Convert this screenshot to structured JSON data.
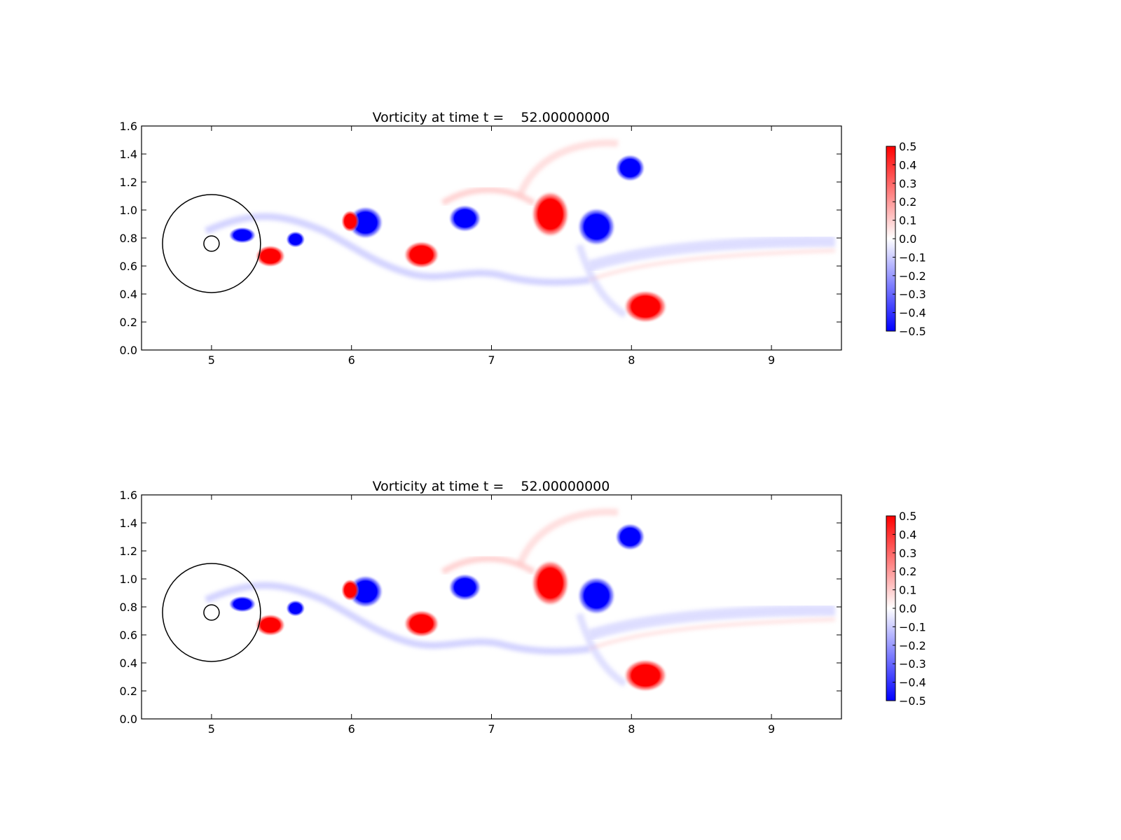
{
  "chart_data": [
    {
      "type": "heatmap",
      "title": "Vorticity at time t =    52.00000000",
      "xlabel": "",
      "ylabel": "",
      "xlim": [
        4.5,
        9.5
      ],
      "ylim": [
        0.0,
        1.6
      ],
      "xticks": [
        5,
        6,
        7,
        8,
        9
      ],
      "xtick_labels": [
        "5",
        "6",
        "7",
        "8",
        "9"
      ],
      "yticks": [
        0.0,
        0.2,
        0.4,
        0.6,
        0.8,
        1.0,
        1.2,
        1.4,
        1.6
      ],
      "ytick_labels": [
        "0.0",
        "0.2",
        "0.4",
        "0.6",
        "0.8",
        "1.0",
        "1.2",
        "1.4",
        "1.6"
      ],
      "grid": false,
      "colormap": "bwr",
      "colorbar": {
        "range": [
          -0.5,
          0.5
        ],
        "ticks": [
          0.5,
          0.4,
          0.3,
          0.2,
          0.1,
          0.0,
          -0.1,
          -0.2,
          -0.3,
          -0.4,
          -0.5
        ],
        "tick_labels": [
          "0.5",
          "0.4",
          "0.3",
          "0.2",
          "0.1",
          "0.0",
          "−0.1",
          "−0.2",
          "−0.3",
          "−0.4",
          "−0.5"
        ],
        "placement": "right"
      },
      "circles": [
        {
          "cx": 5.0,
          "cy": 0.76,
          "r": 0.35
        },
        {
          "cx": 5.0,
          "cy": 0.76,
          "r": 0.055
        }
      ],
      "vortices": [
        {
          "x": 5.22,
          "y": 0.82,
          "rx": 0.1,
          "ry": 0.06,
          "value": -0.5
        },
        {
          "x": 5.6,
          "y": 0.79,
          "rx": 0.07,
          "ry": 0.06,
          "value": -0.5
        },
        {
          "x": 5.42,
          "y": 0.67,
          "rx": 0.11,
          "ry": 0.08,
          "value": 0.5
        },
        {
          "x": 6.1,
          "y": 0.91,
          "rx": 0.13,
          "ry": 0.12,
          "value": -0.5
        },
        {
          "x": 5.99,
          "y": 0.92,
          "rx": 0.065,
          "ry": 0.08,
          "value": 0.5
        },
        {
          "x": 6.5,
          "y": 0.68,
          "rx": 0.13,
          "ry": 0.1,
          "value": 0.5
        },
        {
          "x": 6.81,
          "y": 0.94,
          "rx": 0.12,
          "ry": 0.1,
          "value": -0.5
        },
        {
          "x": 7.42,
          "y": 0.97,
          "rx": 0.14,
          "ry": 0.17,
          "value": 0.5
        },
        {
          "x": 7.75,
          "y": 0.88,
          "rx": 0.14,
          "ry": 0.14,
          "value": -0.5
        },
        {
          "x": 7.99,
          "y": 1.3,
          "rx": 0.11,
          "ry": 0.1,
          "value": -0.5
        },
        {
          "x": 8.1,
          "y": 0.31,
          "rx": 0.16,
          "ry": 0.12,
          "value": 0.5
        }
      ]
    },
    {
      "type": "heatmap",
      "title": "Vorticity at time t =    52.00000000",
      "xlabel": "",
      "ylabel": "",
      "xlim": [
        4.5,
        9.5
      ],
      "ylim": [
        0.0,
        1.6
      ],
      "xticks": [
        5,
        6,
        7,
        8,
        9
      ],
      "xtick_labels": [
        "5",
        "6",
        "7",
        "8",
        "9"
      ],
      "yticks": [
        0.0,
        0.2,
        0.4,
        0.6,
        0.8,
        1.0,
        1.2,
        1.4,
        1.6
      ],
      "ytick_labels": [
        "0.0",
        "0.2",
        "0.4",
        "0.6",
        "0.8",
        "1.0",
        "1.2",
        "1.4",
        "1.6"
      ],
      "grid": false,
      "colormap": "bwr",
      "colorbar": {
        "range": [
          -0.5,
          0.5
        ],
        "ticks": [
          0.5,
          0.4,
          0.3,
          0.2,
          0.1,
          0.0,
          -0.1,
          -0.2,
          -0.3,
          -0.4,
          -0.5
        ],
        "tick_labels": [
          "0.5",
          "0.4",
          "0.3",
          "0.2",
          "0.1",
          "0.0",
          "−0.1",
          "−0.2",
          "−0.3",
          "−0.4",
          "−0.5"
        ],
        "placement": "right"
      },
      "circles": [
        {
          "cx": 5.0,
          "cy": 0.76,
          "r": 0.35
        },
        {
          "cx": 5.0,
          "cy": 0.76,
          "r": 0.055
        }
      ],
      "vortices": [
        {
          "x": 5.22,
          "y": 0.82,
          "rx": 0.1,
          "ry": 0.06,
          "value": -0.5
        },
        {
          "x": 5.6,
          "y": 0.79,
          "rx": 0.07,
          "ry": 0.06,
          "value": -0.5
        },
        {
          "x": 5.42,
          "y": 0.67,
          "rx": 0.11,
          "ry": 0.08,
          "value": 0.5
        },
        {
          "x": 6.1,
          "y": 0.91,
          "rx": 0.13,
          "ry": 0.12,
          "value": -0.5
        },
        {
          "x": 5.99,
          "y": 0.92,
          "rx": 0.065,
          "ry": 0.08,
          "value": 0.5
        },
        {
          "x": 6.5,
          "y": 0.68,
          "rx": 0.13,
          "ry": 0.1,
          "value": 0.5
        },
        {
          "x": 6.81,
          "y": 0.94,
          "rx": 0.12,
          "ry": 0.1,
          "value": -0.5
        },
        {
          "x": 7.42,
          "y": 0.97,
          "rx": 0.14,
          "ry": 0.17,
          "value": 0.5
        },
        {
          "x": 7.75,
          "y": 0.88,
          "rx": 0.14,
          "ry": 0.14,
          "value": -0.5
        },
        {
          "x": 7.99,
          "y": 1.3,
          "rx": 0.11,
          "ry": 0.1,
          "value": -0.5
        },
        {
          "x": 8.1,
          "y": 0.31,
          "rx": 0.16,
          "ry": 0.12,
          "value": 0.5
        }
      ]
    }
  ]
}
